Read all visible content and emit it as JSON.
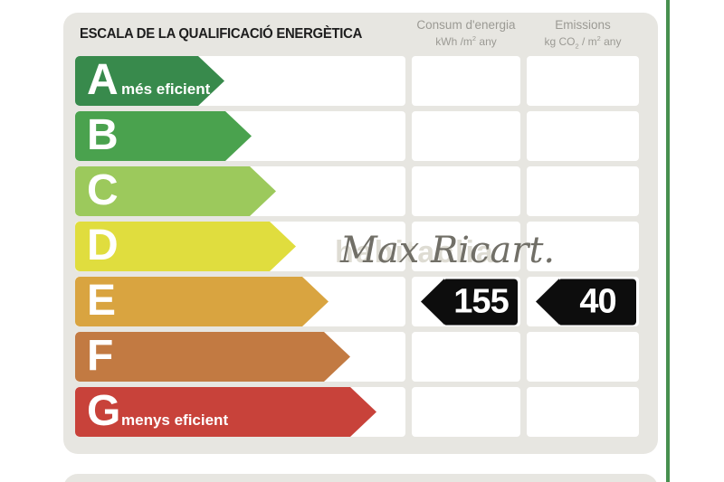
{
  "title": "ESCALA DE LA QUALIFICACIÓ ENERGÈTICA",
  "panel_color": "#e7e6e1",
  "accent_line_color": "#47904f",
  "columns": {
    "consumption": {
      "title": "Consum d'energia",
      "unit_prefix": "kWh /m",
      "unit_sup": "2",
      "unit_suffix": " any"
    },
    "emissions": {
      "title": "Emissions",
      "unit_p1": "kg CO",
      "unit_sub": "2",
      "unit_p2": " / m",
      "unit_sup": "2",
      "unit_p3": " any"
    }
  },
  "ratings": [
    {
      "letter": "A",
      "label": "més eficient",
      "color": "#388a4c",
      "arrow_end_x": 248
    },
    {
      "letter": "B",
      "label": "",
      "color": "#4aa24e",
      "arrow_end_x": 278
    },
    {
      "letter": "C",
      "label": "",
      "color": "#9cc95c",
      "arrow_end_x": 305
    },
    {
      "letter": "D",
      "label": "",
      "color": "#e0dd3e",
      "arrow_end_x": 327
    },
    {
      "letter": "E",
      "label": "",
      "color": "#d9a440",
      "arrow_end_x": 363
    },
    {
      "letter": "F",
      "label": "",
      "color": "#c27a42",
      "arrow_end_x": 387
    },
    {
      "letter": "G",
      "label": "menys eficient",
      "color": "#c8423a",
      "arrow_end_x": 416
    }
  ],
  "indicators": {
    "rating": "E",
    "consumption_value": "155",
    "emissions_value": "40",
    "color": "#0d0d0d"
  },
  "watermark": "Max Ricart.",
  "watermark_faint": "habitaclia",
  "chart_data": {
    "type": "bar",
    "title": "ESCALA DE LA QUALIFICACIÓ ENERGÈTICA",
    "categories": [
      "A",
      "B",
      "C",
      "D",
      "E",
      "F",
      "G"
    ],
    "category_notes": {
      "A": "més eficient",
      "G": "menys eficient"
    },
    "bar_colors": [
      "#388a4c",
      "#4aa24e",
      "#9cc95c",
      "#e0dd3e",
      "#d9a440",
      "#c27a42",
      "#c8423a"
    ],
    "assigned_rating": "E",
    "series": [
      {
        "name": "Consum d'energia (kWh/m2 any)",
        "rating": "E",
        "value": 155
      },
      {
        "name": "Emissions (kg CO2/m2 any)",
        "rating": "E",
        "value": 40
      }
    ],
    "legend_position": "none",
    "grid": false
  }
}
